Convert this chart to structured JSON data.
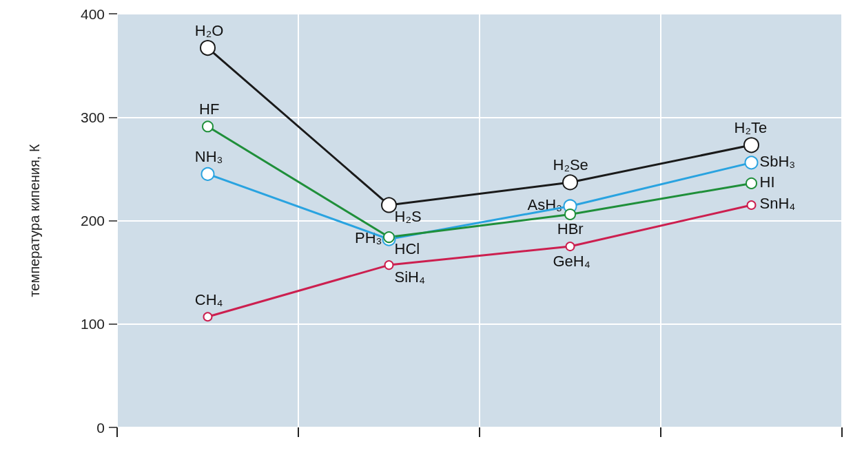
{
  "chart_data": {
    "type": "line",
    "ylabel": "температура кипения, К",
    "categories": [
      null,
      null,
      null,
      null
    ],
    "ylim": [
      0,
      400
    ],
    "yticks": [
      0,
      100,
      200,
      300,
      400
    ],
    "grid": true,
    "marker": "circle",
    "line_style": "solid",
    "series": [
      {
        "color": "#1a1a1a",
        "values": [
          367,
          215,
          237,
          273
        ]
      },
      {
        "color": "#29a3e0",
        "values": [
          245,
          182,
          214,
          256
        ]
      },
      {
        "color": "#1f8f3a",
        "values": [
          291,
          184,
          206,
          236
        ]
      },
      {
        "color": "#cc1f4f",
        "values": [
          107,
          157,
          175,
          215
        ]
      }
    ],
    "annotations": [
      "H₂O",
      "H₂S",
      "H₂Se",
      "H₂Te",
      "NH₃",
      "PH₃",
      "AsH₃",
      "SbH₃",
      "HF",
      "HCl",
      "HBr",
      "HI",
      "CH₄",
      "SiH₄",
      "GeH₄",
      "SnH₄"
    ]
  }
}
